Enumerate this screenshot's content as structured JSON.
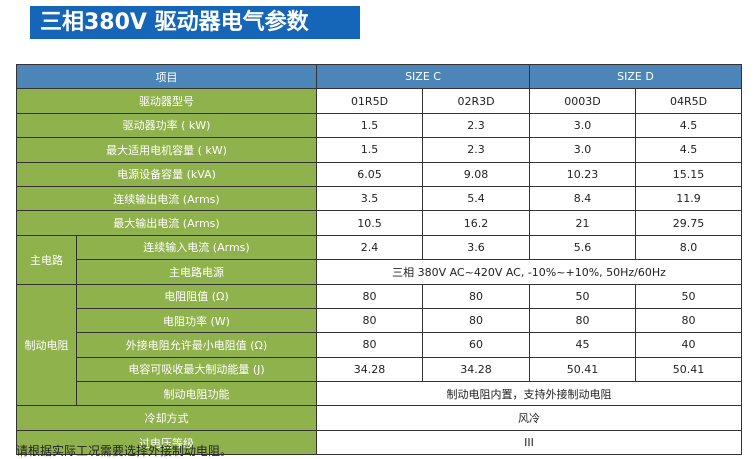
{
  "title": "三相380V 驱动器电气参数",
  "table": {
    "header": {
      "label": "项目",
      "size_c": "SIZE C",
      "size_d": "SIZE D"
    },
    "rows": [
      {
        "label": "驱动器型号",
        "values": [
          "01R5D",
          "02R3D",
          "0003D",
          "04R5D"
        ]
      },
      {
        "label": "驱动器功率 ( kW)",
        "values": [
          "1.5",
          "2.3",
          "3.0",
          "4.5"
        ]
      },
      {
        "label": "最大适用电机容量 ( kW)",
        "values": [
          "1.5",
          "2.3",
          "3.0",
          "4.5"
        ]
      },
      {
        "label": "电源设备容量 (kVA)",
        "values": [
          "6.05",
          "9.08",
          "10.23",
          "15.15"
        ]
      },
      {
        "label": "连续输出电流 (Arms)",
        "values": [
          "3.5",
          "5.4",
          "8.4",
          "11.9"
        ]
      },
      {
        "label": "最大输出电流 (Arms)",
        "values": [
          "10.5",
          "16.2",
          "21",
          "29.75"
        ]
      }
    ],
    "main_circuit": {
      "group": "主电路",
      "input_current": {
        "label": "连续输入电流 (Arms)",
        "values": [
          "2.4",
          "3.6",
          "5.6",
          "8.0"
        ]
      },
      "power_supply": {
        "label": "主电路电源",
        "value": "三相 380V AC~420V AC,  -10%~+10%,  50Hz/60Hz"
      }
    },
    "brake": {
      "group": "制动电阻",
      "rows": [
        {
          "label": "电阻阻值 (Ω)",
          "values": [
            "80",
            "80",
            "50",
            "50"
          ]
        },
        {
          "label": "电阻功率 (W)",
          "values": [
            "80",
            "80",
            "80",
            "80"
          ]
        },
        {
          "label": "外接电阻允许最小电阻值 (Ω)",
          "values": [
            "80",
            "60",
            "45",
            "40"
          ]
        },
        {
          "label": "电容可吸收最大制动能量 (J)",
          "values": [
            "34.28",
            "34.28",
            "50.41",
            "50.41"
          ]
        }
      ],
      "function": {
        "label": "制动电阻功能",
        "value": "制动电阻内置，支持外接制动电阻"
      }
    },
    "cooling": {
      "label": "冷却方式",
      "value": "风冷"
    },
    "overvoltage": {
      "label": "过电压等级",
      "value": "III"
    }
  },
  "note": "请根据实际工况需要选择外接制动电阻。"
}
